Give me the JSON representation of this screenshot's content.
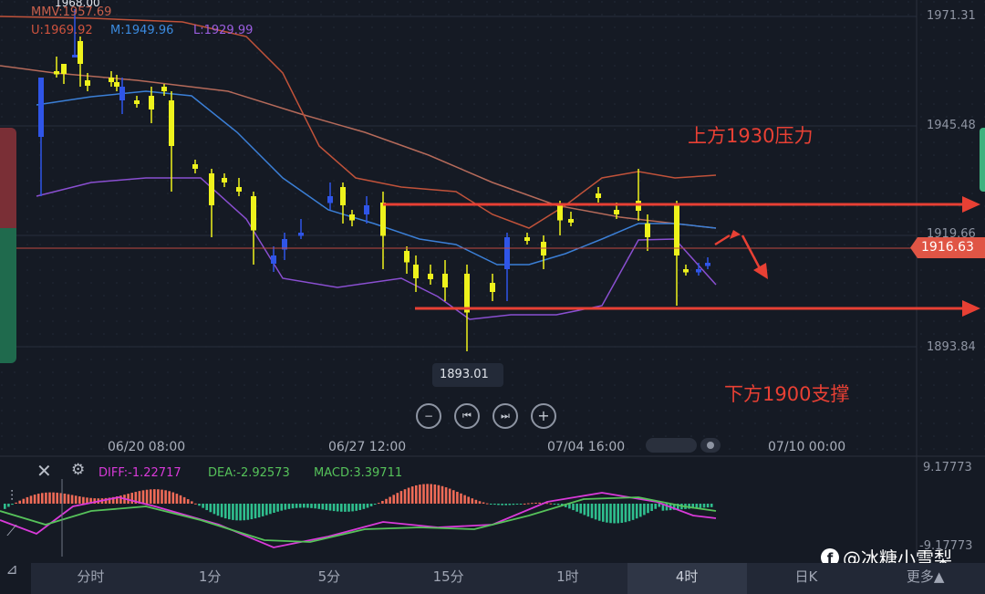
{
  "main_legend": {
    "hi_marker": "1968.00",
    "mmv": "MMV:1957.69",
    "u": "U:1969.92",
    "m": "M:1949.96",
    "l": "L:1929.99"
  },
  "price_axis": [
    "1971.31",
    "1945.48",
    "1919.66",
    "1893.84"
  ],
  "current_price": "1916.63",
  "low_marker": "1893.01",
  "date_labels": [
    "06/20 08:00",
    "06/27 12:00",
    "07/04 16:00",
    "07/10 00:00"
  ],
  "annotations": {
    "resistance": "上方1930压力",
    "support": "下方1900支撑"
  },
  "controls": [
    "−",
    "⏮",
    "⏭",
    "+"
  ],
  "macd_legend": {
    "diff": "DIFF:-1.22717",
    "dea": "DEA:-2.92573",
    "macd": "MACD:3.39711"
  },
  "macd_axis_top": "9.17773",
  "macd_axis_bottom": "-9.17773",
  "watermark": "@冰糖小雪梨",
  "timeframe_tabs": [
    "分时",
    "1分",
    "5分",
    "15分",
    "1时",
    "4时",
    "日K",
    "更多▲"
  ],
  "active_timeframe": "4时",
  "colors": {
    "up_candle": "#2f55e8",
    "down_candle": "#eef21c",
    "upper_band": "#c0523a",
    "mid_band": "#3b7fd6",
    "lower_band": "#8a4fd1",
    "mmv_line": "#b56a5a",
    "annotation_red": "#e84034",
    "macd_pos": "#ef6b57",
    "macd_neg": "#2fbf8e",
    "diff_line": "#d93ad9",
    "dea_line": "#56c25a"
  },
  "icons": [
    "close-icon",
    "settings-icon",
    "candlestick-tool-icon",
    "trendline-tool-icon",
    "measure-tool-icon",
    "facebook-icon"
  ]
}
